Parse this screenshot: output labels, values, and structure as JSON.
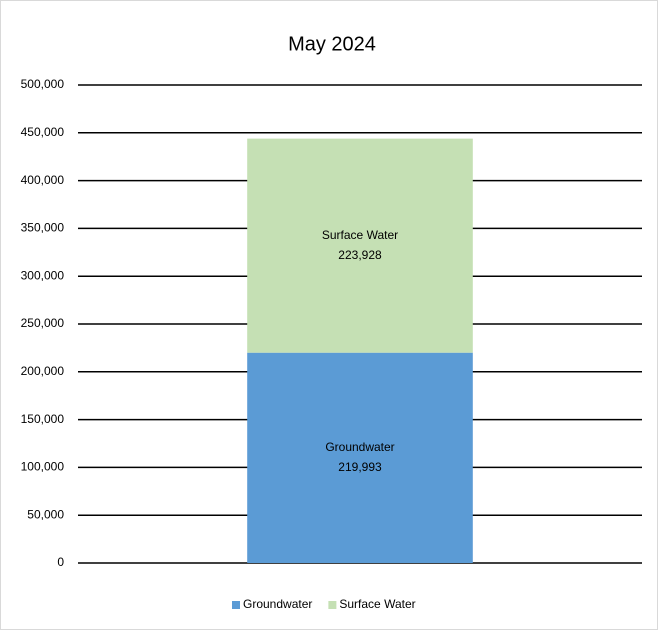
{
  "chart_data": {
    "type": "stacked_bar",
    "title": "May 2024",
    "categories": [
      null
    ],
    "series": [
      {
        "name": "Groundwater",
        "color": "#5b9bd5",
        "values": [
          219993
        ],
        "value_labels": [
          "219,993"
        ]
      },
      {
        "name": "Surface Water",
        "color": "#c5e0b4",
        "values": [
          223928
        ],
        "value_labels": [
          "223,928"
        ]
      }
    ],
    "ylim": [
      0,
      500000
    ],
    "yticks": [
      0,
      {
        "value": 50000,
        "label": "50,000"
      },
      {
        "value": 100000,
        "label": "100,000"
      },
      {
        "value": 150000,
        "label": "150,000"
      },
      {
        "value": 200000,
        "label": "200,000"
      },
      {
        "value": 250000,
        "label": "250,000"
      },
      {
        "value": 300000,
        "label": "300,000"
      },
      {
        "value": 350000,
        "label": "350,000"
      },
      {
        "value": 400000,
        "label": "400,000"
      },
      {
        "value": 450000,
        "label": "450,000"
      },
      {
        "value": 500000,
        "label": "500,000"
      }
    ],
    "grid": true,
    "legend": "bottom"
  }
}
